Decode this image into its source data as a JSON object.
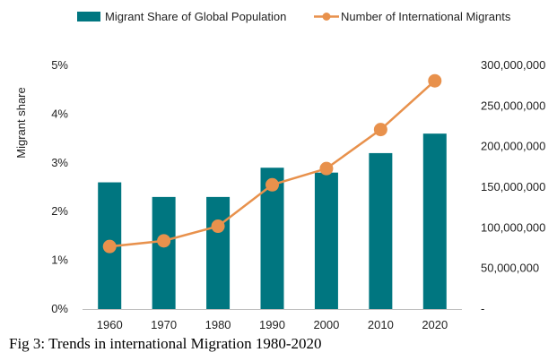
{
  "caption": "Fig 3: Trends in international Migration 1980-2020",
  "colors": {
    "bar": "#007680",
    "line": "#E8914C",
    "axis": "#bfbfbf",
    "text": "#222222"
  },
  "chart_data": {
    "type": "bar",
    "title": "",
    "categories": [
      "1960",
      "1970",
      "1980",
      "1990",
      "2000",
      "2010",
      "2020"
    ],
    "series": [
      {
        "name": "Migrant Share of Global Population",
        "type": "bar",
        "axis": "left",
        "values": [
          2.6,
          2.3,
          2.3,
          2.9,
          2.8,
          3.2,
          3.6
        ]
      },
      {
        "name": "Number of International Migrants",
        "type": "line",
        "axis": "right",
        "values": [
          77000000,
          84000000,
          102000000,
          153000000,
          173000000,
          221000000,
          281000000
        ]
      }
    ],
    "y_left": {
      "label": "Migrant share",
      "range": [
        0,
        5
      ],
      "ticks": [
        0,
        1,
        2,
        3,
        4,
        5
      ],
      "tick_labels": [
        "0%",
        "1%",
        "2%",
        "3%",
        "4%",
        "5%"
      ]
    },
    "y_right": {
      "label": "",
      "range": [
        0,
        300000000
      ],
      "ticks": [
        0,
        50000000,
        100000000,
        150000000,
        200000000,
        250000000,
        300000000
      ],
      "tick_labels": [
        "-",
        "50,000,000",
        "100,000,000",
        "150,000,000",
        "200,000,000",
        "250,000,000",
        "300,000,000"
      ]
    },
    "grid": false,
    "legend_position": "top"
  }
}
